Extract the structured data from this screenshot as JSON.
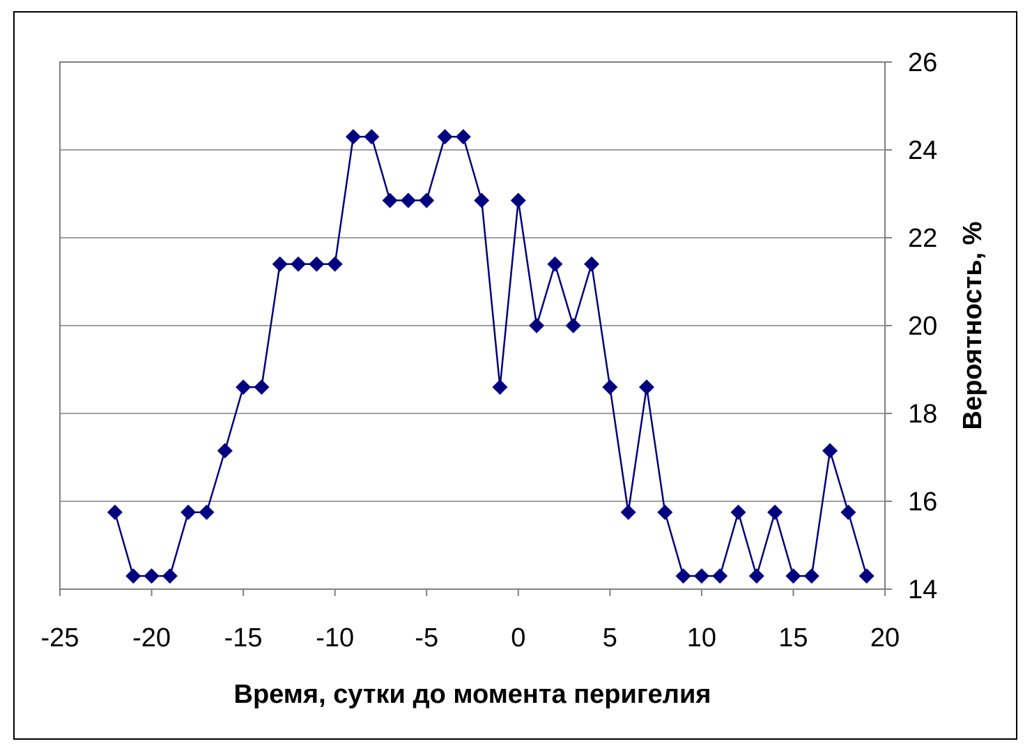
{
  "chart_data": {
    "type": "line",
    "title": "",
    "xlabel": "Время, сутки до момента перигелия",
    "ylabel": "Вероятность, %",
    "xlim": [
      -25,
      20
    ],
    "ylim": [
      14,
      26
    ],
    "x_ticks": [
      "-25",
      "-20",
      "-15",
      "-10",
      "-5",
      "0",
      "5",
      "10",
      "15",
      "20"
    ],
    "y_ticks": [
      "14",
      "16",
      "18",
      "20",
      "22",
      "24",
      "26"
    ],
    "y_axis_side": "right",
    "grid": "horizontal",
    "legend": "none",
    "series": [
      {
        "color": "#000080",
        "marker": "diamond",
        "x": [
          -22,
          -21,
          -20,
          -19,
          -18,
          -17,
          -16,
          -15,
          -14,
          -13,
          -12,
          -11,
          -10,
          -9,
          -8,
          -7,
          -6,
          -5,
          -4,
          -3,
          -2,
          -1,
          0,
          1,
          2,
          3,
          4,
          5,
          6,
          7,
          8,
          9,
          10,
          11,
          12,
          13,
          14,
          15,
          16,
          17,
          18,
          19
        ],
        "y": [
          15.75,
          14.3,
          14.3,
          14.3,
          15.75,
          15.75,
          17.15,
          18.6,
          18.6,
          21.4,
          21.4,
          21.4,
          21.4,
          24.3,
          24.3,
          22.85,
          22.85,
          22.85,
          24.3,
          24.3,
          22.85,
          18.6,
          22.85,
          20.0,
          21.4,
          20.0,
          21.4,
          18.6,
          15.75,
          18.6,
          15.75,
          14.3,
          14.3,
          14.3,
          15.75,
          14.3,
          15.75,
          14.3,
          14.3,
          17.15,
          15.75,
          14.3
        ]
      }
    ]
  }
}
